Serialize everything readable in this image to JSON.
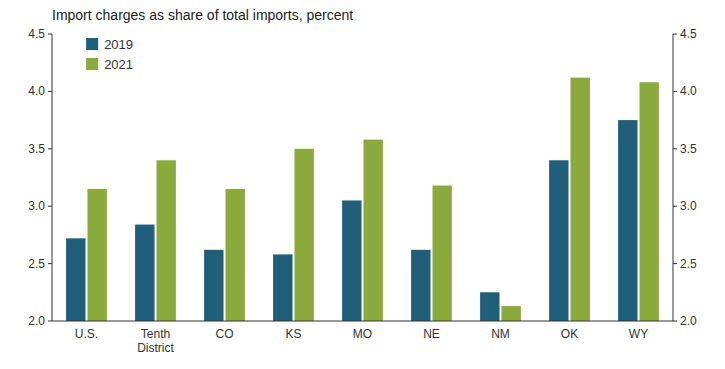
{
  "chart_data": {
    "type": "bar",
    "title": "Import charges as share of total imports, percent",
    "categories": [
      "U.S.",
      "Tenth\nDistrict",
      "CO",
      "KS",
      "MO",
      "NE",
      "NM",
      "OK",
      "WY"
    ],
    "series": [
      {
        "name": "2019",
        "color": "#1f5f7a",
        "values": [
          2.72,
          2.84,
          2.62,
          2.58,
          3.05,
          2.62,
          2.25,
          3.4,
          3.75
        ]
      },
      {
        "name": "2021",
        "color": "#8aab3c",
        "values": [
          3.15,
          3.4,
          3.15,
          3.5,
          3.58,
          3.18,
          2.13,
          4.12,
          4.08
        ]
      }
    ],
    "ylim": [
      2.0,
      4.5
    ],
    "yticks": [
      {
        "value": 2.0,
        "label": "2.0"
      },
      2.5,
      {
        "value": 3.0,
        "label": "3.0"
      },
      3.5,
      {
        "value": 4.0,
        "label": "4.0"
      },
      4.5
    ],
    "y2lim": [
      2.0,
      4.5
    ],
    "y2ticks": [
      {
        "value": 2.0,
        "label": "2.0"
      },
      2.5,
      {
        "value": 3.0,
        "label": "3.0"
      },
      3.5,
      {
        "value": 4.0,
        "label": "4.0"
      },
      4.5
    ],
    "grid": false,
    "legend": "upper left"
  }
}
